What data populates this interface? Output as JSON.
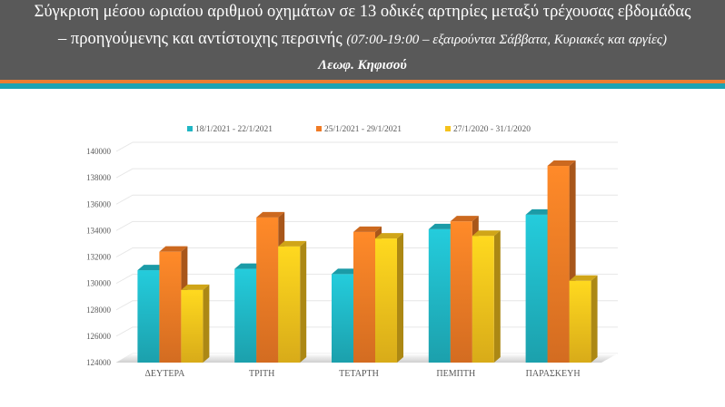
{
  "header": {
    "title_line1": "Σύγκριση μέσου ωριαίου αριθμού οχημάτων σε 13 οδικές αρτηρίες μεταξύ τρέχουσας εβδομάδας",
    "title_line2_main": "– προηγούμενης και αντίστοιχης περσινής",
    "title_line2_note": "(07:00-19:00 – εξαιρούνται Σάββατα, Κυριακές και αργίες)",
    "subtitle": "Λεωφ. Κηφισού"
  },
  "colors": {
    "header_bg": "#595959",
    "stripe_orange": "#ED7D31",
    "stripe_teal": "#1CA3B3"
  },
  "chart_data": {
    "type": "bar",
    "style": "3d-clustered-column",
    "categories": [
      "ΔΕΥΤΕΡΑ",
      "ΤΡΙΤΗ",
      "ΤΕΤΑΡΤΗ",
      "ΠΕΜΠΤΗ",
      "ΠΑΡΑΣΚΕΥΗ"
    ],
    "series": [
      {
        "name": "18/1/2021 - 22/1/2021",
        "color": "#20B6C4",
        "values": [
          131000,
          131100,
          130700,
          134100,
          135200
        ]
      },
      {
        "name": "25/1/2021 - 29/1/2021",
        "color": "#F07B25",
        "values": [
          132400,
          135000,
          133900,
          134700,
          138900
        ]
      },
      {
        "name": "27/1/2020 - 31/1/2020",
        "color": "#F5C21C",
        "values": [
          129500,
          132800,
          133400,
          133600,
          130200
        ]
      }
    ],
    "ylim": [
      124000,
      140000
    ],
    "yticks": [
      124000,
      126000,
      128000,
      130000,
      132000,
      134000,
      136000,
      138000,
      140000
    ],
    "grid": true,
    "legend_position": "top"
  }
}
